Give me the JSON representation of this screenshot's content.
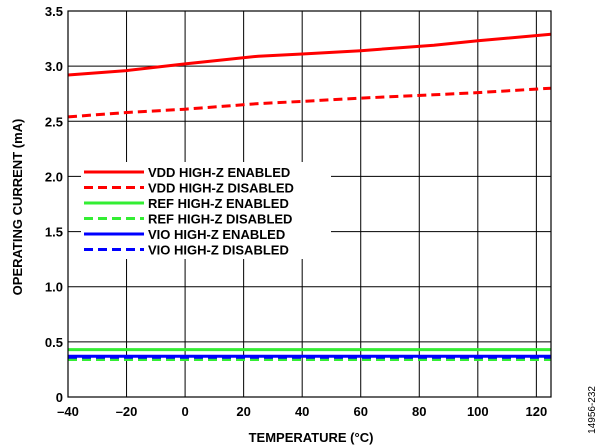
{
  "chart_data": {
    "type": "line",
    "xlabel": "TEMPERATURE (°C)",
    "ylabel": "OPERATING CURRENT (mA)",
    "xlim": [
      -40,
      125
    ],
    "ylim": [
      0,
      3.5
    ],
    "xticks": [
      -40,
      -20,
      0,
      20,
      40,
      60,
      80,
      100,
      120
    ],
    "xtick_labels": [
      "–40",
      "–20",
      "0",
      "20",
      "40",
      "60",
      "80",
      "100",
      "120"
    ],
    "yticks": [
      0,
      0.5,
      1.0,
      1.5,
      2.0,
      2.5,
      3.0,
      3.5
    ],
    "ytick_labels": [
      "0",
      "0.5",
      "1.0",
      "1.5",
      "2.0",
      "2.5",
      "3.0",
      "3.5"
    ],
    "grid": true,
    "legend_position": "left-middle",
    "figure_id": "14956-232",
    "series": [
      {
        "name": "VDD HIGH-Z ENABLED",
        "color": "#ff0000",
        "dash": "solid",
        "x": [
          -40,
          -20,
          0,
          25,
          40,
          60,
          85,
          100,
          125
        ],
        "y": [
          2.92,
          2.96,
          3.02,
          3.09,
          3.11,
          3.14,
          3.19,
          3.23,
          3.29
        ]
      },
      {
        "name": "VDD HIGH-Z DISABLED",
        "color": "#ff0000",
        "dash": "dashed",
        "x": [
          -40,
          -20,
          0,
          25,
          40,
          60,
          85,
          100,
          125
        ],
        "y": [
          2.54,
          2.58,
          2.61,
          2.66,
          2.68,
          2.71,
          2.74,
          2.76,
          2.8
        ]
      },
      {
        "name": "REF HIGH-Z ENABLED",
        "color": "#33ee33",
        "dash": "solid",
        "x": [
          -40,
          125
        ],
        "y": [
          0.43,
          0.43
        ]
      },
      {
        "name": "REF HIGH-Z DISABLED",
        "color": "#33ee33",
        "dash": "dashed",
        "x": [
          -40,
          125
        ],
        "y": [
          0.34,
          0.34
        ]
      },
      {
        "name": "VIO HIGH-Z ENABLED",
        "color": "#0000ff",
        "dash": "solid",
        "x": [
          -40,
          125
        ],
        "y": [
          0.37,
          0.37
        ]
      },
      {
        "name": "VIO HIGH-Z DISABLED",
        "color": "#0000ff",
        "dash": "dashed",
        "x": [
          -40,
          125
        ],
        "y": [
          0.36,
          0.36
        ]
      }
    ]
  }
}
